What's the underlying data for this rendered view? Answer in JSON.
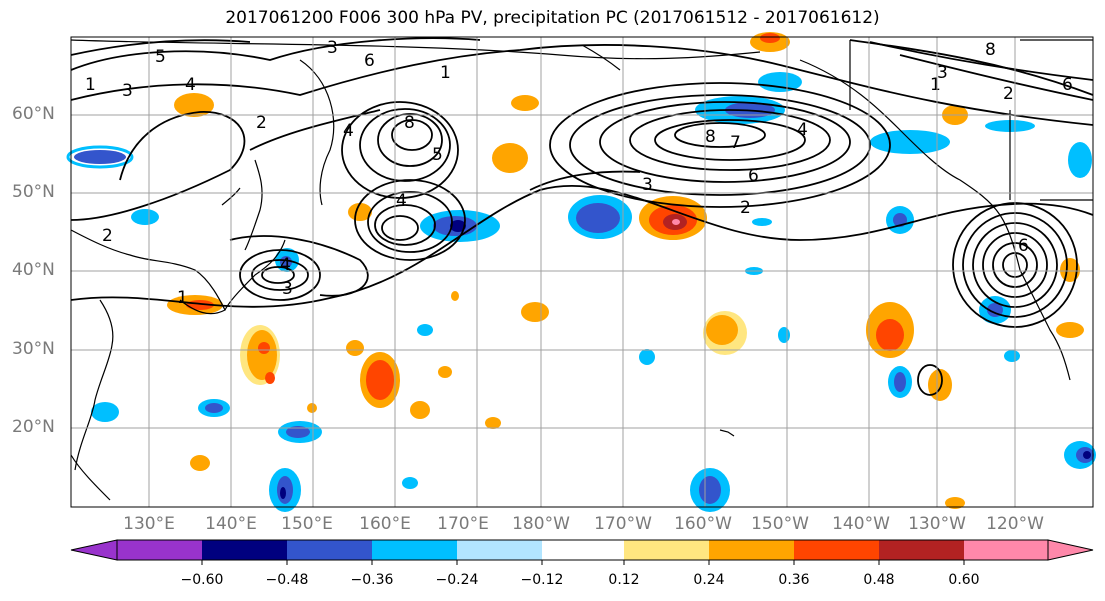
{
  "title": "2017061200 F006 300 hPa PV, precipitation PC (2017061512 - 2017061612)",
  "map": {
    "region": "North Pacific",
    "gridlines": true,
    "lat_labels": [
      "60°N",
      "50°N",
      "40°N",
      "30°N",
      "20°N"
    ],
    "lon_labels": [
      "130°E",
      "140°E",
      "150°E",
      "160°E",
      "170°E",
      "180°W",
      "170°W",
      "160°W",
      "150°W",
      "140°W",
      "130°W",
      "120°W"
    ],
    "pv_contour_labels": [
      "5",
      "4",
      "3",
      "1",
      "6",
      "8",
      "5",
      "4",
      "3",
      "2",
      "4",
      "8",
      "7",
      "6",
      "2",
      "3",
      "8",
      "6",
      "3",
      "1",
      "2",
      "6",
      "4",
      "2",
      "1",
      "1",
      "3",
      "4"
    ]
  },
  "colorbar": {
    "ticks": [
      "−0.60",
      "−0.48",
      "−0.36",
      "−0.24",
      "−0.12",
      "0.12",
      "0.24",
      "0.36",
      "0.48",
      "0.60"
    ],
    "colors": [
      "#9933cc",
      "#00007f",
      "#3355cc",
      "#00bfff",
      "#b2e5ff",
      "#ffffff",
      "#ffe680",
      "#ffa500",
      "#ff4500",
      "#b22222",
      "#ff88aa"
    ],
    "extend": "both"
  }
}
